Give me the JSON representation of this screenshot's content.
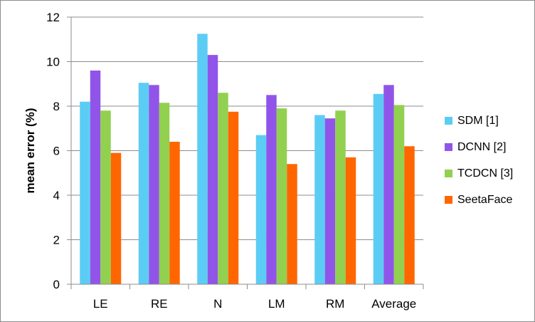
{
  "chart_data": {
    "type": "bar",
    "title": "",
    "xlabel": "",
    "ylabel": "mean error  (%)",
    "ylim": [
      0,
      12
    ],
    "yticks": [
      0,
      2,
      4,
      6,
      8,
      10,
      12
    ],
    "grid": true,
    "legend_position": "right",
    "categories": [
      "LE",
      "RE",
      "N",
      "LM",
      "RM",
      "Average"
    ],
    "series": [
      {
        "name": "SDM [1]",
        "color": "#5bcdf5",
        "values": [
          8.2,
          9.05,
          11.25,
          6.7,
          7.6,
          8.55
        ]
      },
      {
        "name": "DCNN [2]",
        "color": "#9055e8",
        "values": [
          9.6,
          8.95,
          10.3,
          8.5,
          7.45,
          8.95
        ]
      },
      {
        "name": "TCDCN [3]",
        "color": "#92d050",
        "values": [
          7.8,
          8.15,
          8.6,
          7.9,
          7.8,
          8.05
        ]
      },
      {
        "name": "SeetaFace",
        "color": "#ff6600",
        "values": [
          5.9,
          6.4,
          7.75,
          5.4,
          5.7,
          6.2
        ]
      }
    ]
  }
}
